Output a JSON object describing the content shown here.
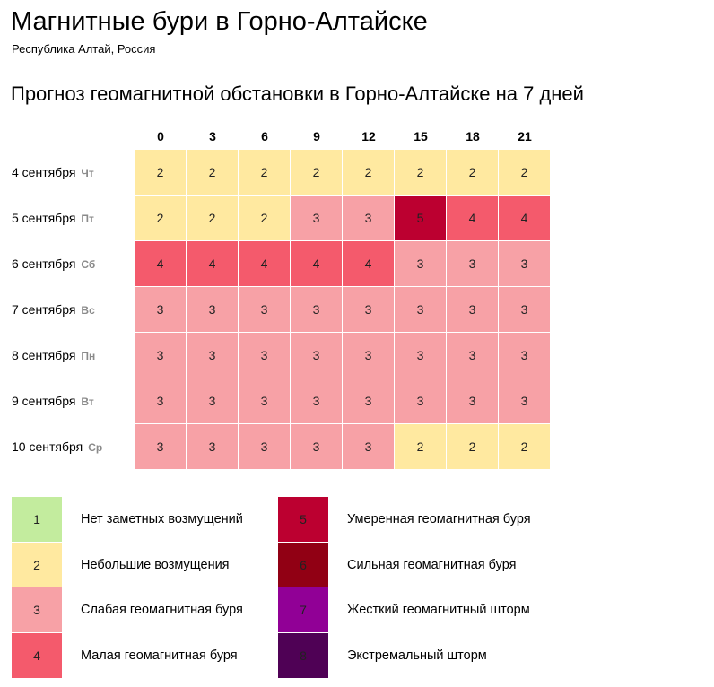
{
  "page": {
    "title": "Магнитные бури в Горно-Алтайске",
    "subtitle": "Республика Алтай, Россия",
    "forecast_heading": "Прогноз геомагнитной обстановки в Горно-Алтайске на 7 дней"
  },
  "colors": {
    "level_1": "#c3ec9e",
    "level_2": "#ffe9a0",
    "level_3": "#f7a1a6",
    "level_4": "#f45a6c",
    "level_5": "#bc0030",
    "level_6": "#910014",
    "level_7": "#910096",
    "level_8": "#4f0155",
    "day_of_week_text": "#8a8a8a"
  },
  "chart_data": {
    "type": "heatmap",
    "title": "Прогноз геомагнитной обстановки в Горно-Алтайске на 7 дней",
    "hours": [
      "0",
      "3",
      "6",
      "9",
      "12",
      "15",
      "18",
      "21"
    ],
    "days": [
      {
        "date": "4 сентября",
        "dow": "Чт",
        "values": [
          2,
          2,
          2,
          2,
          2,
          2,
          2,
          2
        ]
      },
      {
        "date": "5 сентября",
        "dow": "Пт",
        "values": [
          2,
          2,
          2,
          3,
          3,
          5,
          4,
          4
        ]
      },
      {
        "date": "6 сентября",
        "dow": "Сб",
        "values": [
          4,
          4,
          4,
          4,
          4,
          3,
          3,
          3
        ]
      },
      {
        "date": "7 сентября",
        "dow": "Вс",
        "values": [
          3,
          3,
          3,
          3,
          3,
          3,
          3,
          3
        ]
      },
      {
        "date": "8 сентября",
        "dow": "Пн",
        "values": [
          3,
          3,
          3,
          3,
          3,
          3,
          3,
          3
        ]
      },
      {
        "date": "9 сентября",
        "dow": "Вт",
        "values": [
          3,
          3,
          3,
          3,
          3,
          3,
          3,
          3
        ]
      },
      {
        "date": "10 сентября",
        "dow": "Ср",
        "values": [
          3,
          3,
          3,
          3,
          3,
          2,
          2,
          2
        ]
      }
    ]
  },
  "legend": [
    {
      "level": "1",
      "label": "Нет заметных возмущений"
    },
    {
      "level": "2",
      "label": "Небольшие возмущения"
    },
    {
      "level": "3",
      "label": "Слабая геомагнитная буря"
    },
    {
      "level": "4",
      "label": "Малая геомагнитная буря"
    },
    {
      "level": "5",
      "label": "Умеренная геомагнитная буря"
    },
    {
      "level": "6",
      "label": "Сильная геомагнитная буря"
    },
    {
      "level": "7",
      "label": "Жесткий геомагнитный шторм"
    },
    {
      "level": "8",
      "label": "Экстремальный шторм"
    }
  ]
}
